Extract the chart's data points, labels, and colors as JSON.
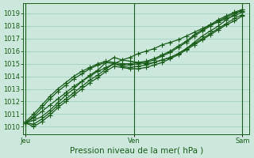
{
  "title": "Pression niveau de la mer( hPa )",
  "bg_color": "#cce8dd",
  "grid_color": "#99ccbb",
  "line_color": "#1a5c1a",
  "marker_color": "#1a5c1a",
  "xtick_labels": [
    "Jeu",
    "Ven",
    "Sam"
  ],
  "xtick_positions": [
    0,
    24,
    48
  ],
  "yticks": [
    1010,
    1011,
    1012,
    1013,
    1014,
    1015,
    1016,
    1017,
    1018,
    1019
  ],
  "ylim": [
    1009.4,
    1019.8
  ],
  "xlim": [
    -0.5,
    49.5
  ],
  "series": [
    [
      1010.3,
      1010.5,
      1010.8,
      1011.3,
      1011.9,
      1012.5,
      1013.0,
      1013.6,
      1014.1,
      1014.5,
      1015.1,
      1015.5,
      1015.3,
      1015.2,
      1015.1,
      1015.0,
      1015.1,
      1015.3,
      1015.5,
      1015.8,
      1016.2,
      1016.7,
      1017.2,
      1017.6,
      1018.0,
      1018.5,
      1018.9,
      1019.3
    ],
    [
      1010.3,
      1010.2,
      1010.6,
      1011.1,
      1011.7,
      1012.2,
      1012.7,
      1013.2,
      1013.7,
      1014.1,
      1014.6,
      1015.0,
      1014.8,
      1014.7,
      1014.8,
      1014.9,
      1015.1,
      1015.3,
      1015.5,
      1015.8,
      1016.2,
      1016.6,
      1017.0,
      1017.4,
      1017.8,
      1018.2,
      1018.6,
      1018.9
    ],
    [
      1010.3,
      1010.0,
      1010.4,
      1010.9,
      1011.5,
      1012.0,
      1012.5,
      1013.0,
      1013.5,
      1013.9,
      1014.4,
      1014.8,
      1014.7,
      1014.6,
      1014.6,
      1014.7,
      1014.9,
      1015.1,
      1015.4,
      1015.7,
      1016.1,
      1016.5,
      1016.9,
      1017.3,
      1017.7,
      1018.1,
      1018.4,
      1018.8
    ],
    [
      1010.4,
      1011.0,
      1011.7,
      1012.4,
      1013.0,
      1013.5,
      1014.0,
      1014.4,
      1014.7,
      1015.0,
      1015.2,
      1015.1,
      1015.0,
      1015.0,
      1015.1,
      1015.2,
      1015.4,
      1015.7,
      1016.0,
      1016.4,
      1016.8,
      1017.3,
      1017.7,
      1018.1,
      1018.5,
      1018.8,
      1019.1,
      1019.3
    ],
    [
      1010.3,
      1010.8,
      1011.5,
      1012.2,
      1012.8,
      1013.3,
      1013.8,
      1014.2,
      1014.6,
      1014.9,
      1015.1,
      1015.0,
      1014.9,
      1014.9,
      1015.0,
      1015.1,
      1015.3,
      1015.6,
      1015.9,
      1016.3,
      1016.7,
      1017.2,
      1017.6,
      1018.0,
      1018.4,
      1018.7,
      1019.0,
      1019.2
    ]
  ],
  "series_straight": [
    [
      1010.3,
      1010.7,
      1011.2,
      1011.7,
      1012.2,
      1012.7,
      1013.2,
      1013.6,
      1014.0,
      1014.4,
      1014.7,
      1015.0,
      1015.3,
      1015.5,
      1015.8,
      1016.0,
      1016.2,
      1016.5,
      1016.7,
      1016.9,
      1017.2,
      1017.5,
      1017.8,
      1018.1,
      1018.3,
      1018.6,
      1018.8,
      1019.1
    ]
  ],
  "marker": "+",
  "markersize": 4,
  "linewidth": 0.9,
  "vline_positions": [
    0,
    24,
    48
  ],
  "tick_fontsize": 6,
  "xlabel_fontsize": 7.5
}
